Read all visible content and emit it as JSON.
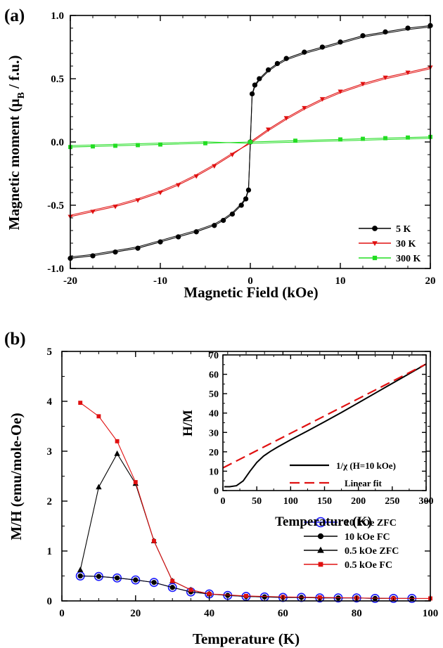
{
  "chart_data": [
    {
      "panel": "(a)",
      "type": "line",
      "xlabel": "Magnetic Field (kOe)",
      "ylabel_main": "Magnetic moment (μ",
      "ylabel_sub": "B",
      "ylabel_tail": " / f.u.)",
      "xlim": [
        -20,
        20
      ],
      "ylim": [
        -1.0,
        1.0
      ],
      "xticks": [
        "-20",
        "-10",
        "0",
        "10",
        "20"
      ],
      "yticks": [
        "-1.0",
        "-0.5",
        "0.0",
        "0.5",
        "1.0"
      ],
      "legend_position": "bottom-right",
      "series": [
        {
          "name": "5 K",
          "color": "#000000",
          "marker": "circle",
          "x": [
            -20,
            -17.5,
            -15,
            -12.5,
            -10,
            -8,
            -6,
            -4,
            -3,
            -2,
            -1,
            -0.5,
            -0.2,
            0,
            0.2,
            0.5,
            1,
            2,
            3,
            4,
            6,
            8,
            10,
            12.5,
            15,
            17.5,
            20
          ],
          "y": [
            -0.92,
            -0.9,
            -0.87,
            -0.84,
            -0.79,
            -0.75,
            -0.71,
            -0.66,
            -0.62,
            -0.57,
            -0.5,
            -0.45,
            -0.38,
            0.0,
            0.38,
            0.45,
            0.5,
            0.57,
            0.62,
            0.66,
            0.71,
            0.75,
            0.79,
            0.84,
            0.87,
            0.9,
            0.92
          ]
        },
        {
          "name": "30 K",
          "color": "#e01010",
          "marker": "triangle-down",
          "x": [
            -20,
            -17.5,
            -15,
            -12.5,
            -10,
            -8,
            -6,
            -4,
            -2,
            0,
            2,
            4,
            6,
            8,
            10,
            12.5,
            15,
            17.5,
            20
          ],
          "y": [
            -0.59,
            -0.55,
            -0.51,
            -0.46,
            -0.4,
            -0.34,
            -0.27,
            -0.19,
            -0.1,
            0.0,
            0.1,
            0.19,
            0.27,
            0.34,
            0.4,
            0.46,
            0.51,
            0.55,
            0.59
          ]
        },
        {
          "name": "300 K",
          "color": "#22dd22",
          "marker": "square",
          "x": [
            -20,
            -17.5,
            -15,
            -12.5,
            -10,
            -5,
            0,
            5,
            10,
            12.5,
            15,
            17.5,
            20
          ],
          "y": [
            -0.04,
            -0.035,
            -0.03,
            -0.025,
            -0.02,
            -0.01,
            0.0,
            0.01,
            0.02,
            0.025,
            0.03,
            0.035,
            0.04
          ]
        }
      ]
    },
    {
      "panel": "(b)",
      "type": "line",
      "xlabel": "Temperature (K)",
      "ylabel": "M/H (emu/mole-Oe)",
      "xlim": [
        0,
        100
      ],
      "ylim": [
        0,
        5
      ],
      "xticks": [
        "0",
        "20",
        "40",
        "60",
        "80",
        "100"
      ],
      "yticks": [
        "0",
        "1",
        "2",
        "3",
        "4",
        "5"
      ],
      "legend_position": "bottom-right",
      "series": [
        {
          "name": "10 kOe ZFC",
          "color": "#1a1aff",
          "marker": "open-circle",
          "x": [
            5,
            10,
            15,
            20,
            25,
            30,
            35,
            40,
            45,
            50,
            55,
            60,
            65,
            70,
            75,
            80,
            85,
            90,
            95
          ],
          "y": [
            0.5,
            0.49,
            0.46,
            0.42,
            0.37,
            0.27,
            0.18,
            0.14,
            0.11,
            0.09,
            0.08,
            0.07,
            0.07,
            0.06,
            0.06,
            0.06,
            0.05,
            0.05,
            0.05
          ]
        },
        {
          "name": "10 kOe FC",
          "color": "#000000",
          "marker": "circle",
          "x": [
            5,
            10,
            15,
            20,
            25,
            30,
            35,
            40,
            45,
            50,
            55,
            60,
            65,
            70,
            75,
            80,
            85,
            90,
            95
          ],
          "y": [
            0.5,
            0.49,
            0.46,
            0.42,
            0.37,
            0.27,
            0.18,
            0.14,
            0.11,
            0.09,
            0.08,
            0.07,
            0.07,
            0.06,
            0.06,
            0.06,
            0.05,
            0.05,
            0.05
          ]
        },
        {
          "name": "0.5 kOe ZFC",
          "color": "#000000",
          "marker": "triangle",
          "x": [
            5,
            10,
            15,
            20,
            25,
            30,
            35,
            40
          ],
          "y": [
            0.62,
            2.28,
            2.95,
            2.35,
            1.2,
            0.4,
            0.22,
            0.14
          ]
        },
        {
          "name": "0.5 kOe FC",
          "color": "#e01010",
          "marker": "square",
          "x": [
            5,
            10,
            15,
            20,
            25,
            30,
            35,
            40,
            50,
            60,
            70,
            80,
            90,
            100
          ],
          "y": [
            3.97,
            3.7,
            3.2,
            2.38,
            1.2,
            0.4,
            0.22,
            0.14,
            0.1,
            0.08,
            0.07,
            0.06,
            0.05,
            0.05
          ]
        }
      ]
    },
    {
      "panel": "(b) inset",
      "type": "line",
      "xlabel": "Temperature (K)",
      "ylabel": "H/M",
      "xlim": [
        0,
        300
      ],
      "ylim": [
        0,
        70
      ],
      "xticks": [
        "0",
        "50",
        "100",
        "150",
        "200",
        "250",
        "300"
      ],
      "yticks": [
        "0",
        "10",
        "20",
        "30",
        "40",
        "50",
        "60",
        "70"
      ],
      "legend_position": "bottom-right",
      "series": [
        {
          "name": "1/χ (H=10 kOe)",
          "color": "#000000",
          "style": "solid",
          "x": [
            2,
            10,
            20,
            30,
            40,
            50,
            60,
            70,
            80,
            100,
            125,
            150,
            175,
            200,
            225,
            250,
            275,
            300
          ],
          "y": [
            2,
            2,
            2.5,
            5,
            10,
            14.5,
            17.8,
            20.2,
            22.3,
            26.2,
            30.8,
            35.5,
            40.3,
            45.3,
            50.3,
            55.3,
            60.3,
            65.3
          ]
        },
        {
          "name": "Linear fit",
          "color": "#e01010",
          "style": "dashed",
          "x": [
            0,
            300
          ],
          "y": [
            11.7,
            65.3
          ]
        }
      ]
    }
  ]
}
